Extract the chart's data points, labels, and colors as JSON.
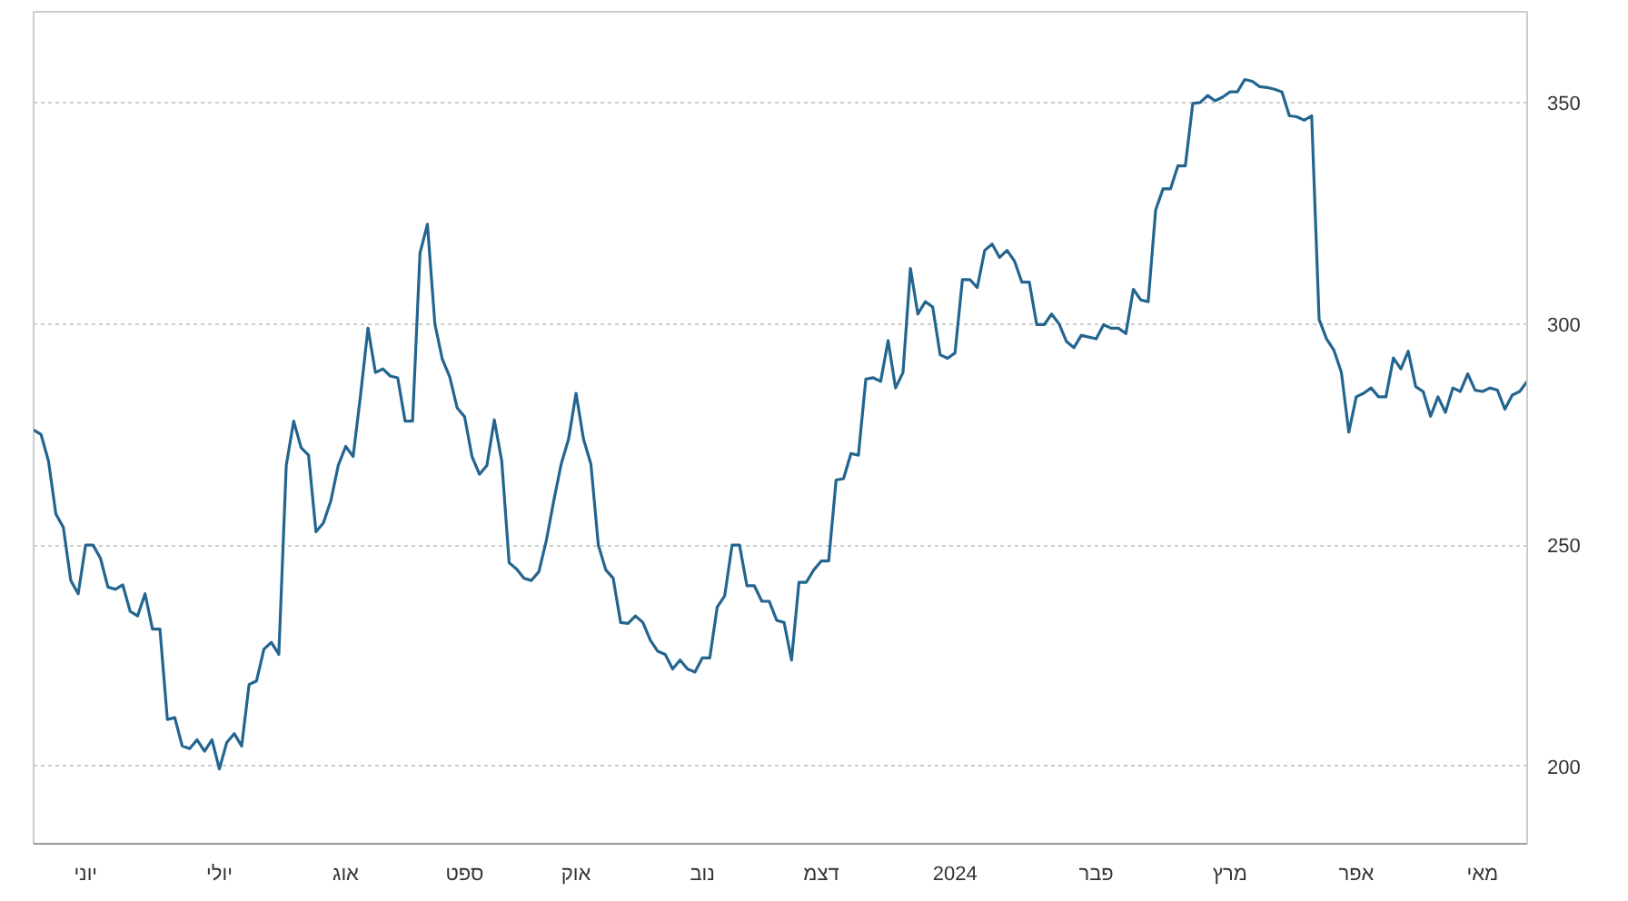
{
  "chart_data": {
    "type": "line",
    "color": "#23658f",
    "grid": "y",
    "categories": [
      null,
      null,
      null,
      null,
      null,
      null,
      null,
      "יוני",
      null,
      null,
      null,
      null,
      null,
      null,
      null,
      null,
      null,
      null,
      null,
      null,
      null,
      null,
      null,
      null,
      null,
      "יולי",
      null,
      null,
      null,
      null,
      null,
      null,
      null,
      null,
      null,
      null,
      null,
      null,
      null,
      null,
      null,
      null,
      "אוג",
      null,
      null,
      null,
      null,
      null,
      null,
      null,
      null,
      null,
      null,
      null,
      null,
      null,
      null,
      null,
      "ספט",
      null,
      null,
      null,
      null,
      null,
      null,
      null,
      null,
      null,
      null,
      null,
      null,
      null,
      null,
      "אוק",
      null,
      null,
      null,
      null,
      null,
      null,
      null,
      null,
      null,
      null,
      null,
      null,
      null,
      null,
      null,
      null,
      "נוב",
      null,
      null,
      null,
      null,
      null,
      null,
      null,
      null,
      null,
      null,
      null,
      null,
      null,
      null,
      null,
      "דצמ",
      null,
      null,
      null,
      null,
      null,
      null,
      null,
      null,
      null,
      null,
      null,
      null,
      null,
      null,
      null,
      null,
      null,
      "2024",
      null,
      null,
      null,
      null,
      null,
      null,
      null,
      null,
      null,
      null,
      null,
      null,
      null,
      null,
      null,
      null,
      null,
      null,
      "פבר",
      null,
      null,
      null,
      null,
      null,
      null,
      null,
      null,
      null,
      null,
      null,
      null,
      null,
      null,
      null,
      null,
      null,
      "מרץ",
      null,
      null,
      null,
      null,
      null,
      null,
      null,
      null,
      null,
      null,
      null,
      null,
      null,
      null,
      null,
      null,
      "אפר",
      null,
      null,
      null,
      null,
      null,
      null,
      null,
      null,
      null,
      null,
      null,
      null,
      null,
      null,
      null,
      null,
      "מאי",
      null,
      null,
      null,
      null,
      null,
      null
    ],
    "values": [
      276,
      275,
      269,
      257,
      254,
      242,
      239,
      250,
      250,
      247,
      240.5,
      240,
      241,
      235,
      234,
      239,
      231,
      231,
      210.6,
      211,
      204.6,
      204,
      206,
      203.4,
      206,
      199.4,
      205.4,
      207.4,
      204.6,
      218.5,
      219.3,
      226.5,
      228,
      225.3,
      268,
      278,
      272,
      270.3,
      253,
      255,
      260,
      268,
      272.3,
      270,
      283.9,
      299,
      289,
      289.8,
      288.2,
      287.8,
      278,
      278,
      316,
      322.5,
      300,
      292,
      288,
      281,
      279,
      270,
      266,
      268,
      278.3,
      269,
      246,
      244.6,
      242.5,
      242,
      244,
      251,
      260,
      268.3,
      274,
      284.3,
      274,
      268.3,
      250,
      244.4,
      242.5,
      232.5,
      232.3,
      234,
      232.5,
      228.5,
      226,
      225.3,
      222,
      224,
      222,
      221.3,
      224.5,
      224.5,
      236,
      238.5,
      250,
      250,
      240.8,
      240.8,
      237.3,
      237.3,
      233,
      232.5,
      224,
      241.6,
      241.6,
      244.4,
      246.4,
      246.4,
      264.7,
      265,
      270.7,
      270.3,
      287.5,
      287.8,
      287,
      296.2,
      285.5,
      289,
      312.5,
      302.2,
      305,
      303.8,
      293,
      292.2,
      293.4,
      310,
      310,
      308.2,
      316.6,
      318,
      315,
      316.6,
      314.2,
      309.4,
      309.4,
      299.8,
      299.8,
      302.2,
      300,
      296,
      294.6,
      297.4,
      297,
      296.6,
      299.8,
      299,
      299,
      297.8,
      307.8,
      305.4,
      305,
      325.7,
      330.5,
      330.5,
      335.7,
      335.7,
      349.8,
      350,
      351.6,
      350.4,
      351.2,
      352.4,
      352.4,
      355.2,
      354.8,
      353.6,
      353.4,
      353,
      352.4,
      347,
      346.8,
      346,
      347,
      301,
      296.6,
      294,
      289,
      275.5,
      283.5,
      284.3,
      285.5,
      283.5,
      283.5,
      292.3,
      289.8,
      293.8,
      285.8,
      284.7,
      279.1,
      283.5,
      280,
      285.5,
      284.7,
      288.7,
      285,
      284.7,
      285.5,
      285,
      280.7,
      283.9,
      284.7,
      287
    ],
    "ylim": [
      182.5,
      370.5
    ],
    "yticks": [
      200,
      250,
      300,
      350
    ]
  }
}
